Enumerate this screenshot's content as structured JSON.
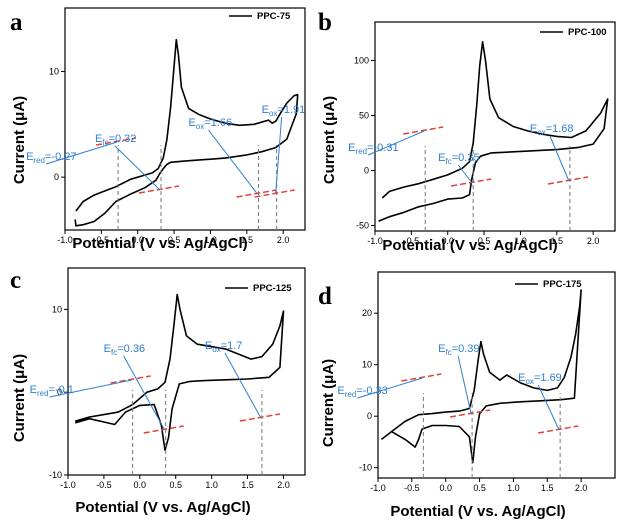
{
  "figure": {
    "panel_labels": [
      "a",
      "b",
      "c",
      "d"
    ],
    "xlabel": "Potential (V vs. Ag/AgCl)",
    "ylabel": "Current (μA)"
  },
  "chart_data": [
    {
      "panel": "a",
      "type": "line",
      "xlabel": "Potential (V vs. Ag/AgCl)",
      "ylabel": "Current (μA)",
      "xlim": [
        -1.0,
        2.3
      ],
      "ylim": [
        -5,
        16
      ],
      "xticks": [
        -1.0,
        -0.5,
        0.0,
        0.5,
        1.0,
        1.5,
        2.0
      ],
      "xtick_labels": [
        "-1.0",
        "-0.5",
        "0.0",
        "0.5",
        "1.0",
        "1.5",
        "2.0"
      ],
      "yticks": [
        0,
        10
      ],
      "ytick_labels": [
        "0",
        "10"
      ],
      "series": [
        {
          "name": "PPC-75",
          "color": "#000000",
          "x": [
            -0.85,
            -0.75,
            -0.6,
            -0.45,
            -0.3,
            -0.1,
            0.1,
            0.2,
            0.28,
            0.35,
            0.4,
            0.45,
            0.5,
            0.53,
            0.56,
            0.6,
            0.7,
            0.85,
            1.0,
            1.2,
            1.4,
            1.6,
            1.7,
            1.8,
            1.85,
            1.9,
            1.95,
            2.05,
            2.15,
            2.2,
            2.18,
            2.05,
            1.9,
            1.7,
            1.5,
            1.2,
            1.0,
            0.8,
            0.6,
            0.45,
            0.4,
            0.35,
            0.3,
            0.25,
            0.1,
            -0.1,
            -0.3,
            -0.45,
            -0.6,
            -0.75,
            -0.85,
            -0.86
          ],
          "y": [
            -3.2,
            -2.3,
            -1.7,
            -1.3,
            -0.9,
            -0.2,
            0.2,
            0.4,
            0.8,
            1.8,
            3.5,
            6.5,
            10.5,
            13,
            11.5,
            8.5,
            6.5,
            5.9,
            5.5,
            5.1,
            4.9,
            5.0,
            5.2,
            5.4,
            5.1,
            5.3,
            5.9,
            7.0,
            7.7,
            7.8,
            6.0,
            3.6,
            2.8,
            2.4,
            2.1,
            1.8,
            1.7,
            1.6,
            1.5,
            1.4,
            1.2,
            0.8,
            0.3,
            -0.3,
            -1.0,
            -1.6,
            -2.3,
            -3.4,
            -4.2,
            -4.5,
            -4.6,
            -4.0
          ]
        }
      ],
      "annotations": [
        {
          "label": "E",
          "sub": "red",
          "value": "=-0.27",
          "x": -0.27
        },
        {
          "label": "E",
          "sub": "fc",
          "value": "=0.32",
          "x": 0.32
        },
        {
          "label": "E",
          "sub": "ox",
          "value": "=1.66",
          "x": 1.66
        },
        {
          "label": "E",
          "sub": "ox",
          "value": "=1.91",
          "x": 1.91
        }
      ]
    },
    {
      "panel": "b",
      "type": "line",
      "xlabel": "Potential (V vs. Ag/AgCl)",
      "ylabel": "Current (μA)",
      "xlim": [
        -1.0,
        2.3
      ],
      "ylim": [
        -55,
        135
      ],
      "xticks": [
        -1.0,
        -0.5,
        0.0,
        0.5,
        1.0,
        1.5,
        2.0
      ],
      "xtick_labels": [
        "-1.0",
        "-0.5",
        "0.0",
        "0.5",
        "1.0",
        "1.5",
        "2.0"
      ],
      "yticks": [
        -50,
        0,
        50,
        100
      ],
      "ytick_labels": [
        "-50",
        "0",
        "50",
        "100"
      ],
      "series": [
        {
          "name": "PPC-100",
          "color": "#000000",
          "x": [
            -0.9,
            -0.8,
            -0.6,
            -0.4,
            -0.2,
            0.0,
            0.2,
            0.3,
            0.35,
            0.4,
            0.44,
            0.48,
            0.52,
            0.58,
            0.7,
            0.9,
            1.1,
            1.3,
            1.5,
            1.7,
            1.9,
            2.1,
            2.2,
            2.15,
            2.0,
            1.8,
            1.5,
            1.2,
            0.9,
            0.6,
            0.45,
            0.38,
            0.33,
            0.3,
            0.2,
            0.0,
            -0.2,
            -0.4,
            -0.6,
            -0.8,
            -0.95
          ],
          "y": [
            -25,
            -19,
            -15,
            -12,
            -8,
            -4,
            2,
            8,
            25,
            60,
            95,
            117,
            100,
            65,
            48,
            40,
            36,
            33,
            31,
            30,
            36,
            52,
            65,
            38,
            24,
            21,
            19,
            18,
            17,
            16,
            13,
            7,
            -8,
            -22,
            -25,
            -26,
            -30,
            -33,
            -38,
            -42,
            -46
          ]
        }
      ],
      "annotations": [
        {
          "label": "E",
          "sub": "red",
          "value": "=-0.31",
          "x": -0.31
        },
        {
          "label": "E",
          "sub": "fc",
          "value": "=0.35",
          "x": 0.35
        },
        {
          "label": "E",
          "sub": "ox",
          "value": "=1.68",
          "x": 1.68
        }
      ]
    },
    {
      "panel": "c",
      "type": "line",
      "xlabel": "Potential (V vs. Ag/AgCl)",
      "ylabel": "Current (μA)",
      "xlim": [
        -1.0,
        2.3
      ],
      "ylim": [
        -10,
        15
      ],
      "xticks": [
        -1.0,
        -0.5,
        0.0,
        0.5,
        1.0,
        1.5,
        2.0
      ],
      "xtick_labels": [
        "-1.0",
        "-0.5",
        "0.0",
        "0.5",
        "1.0",
        "1.5",
        "2.0"
      ],
      "yticks": [
        -10,
        0,
        10
      ],
      "ytick_labels": [
        "-10",
        "0",
        "10"
      ],
      "series": [
        {
          "name": "PPC-125",
          "color": "#000000",
          "x": [
            -0.9,
            -0.7,
            -0.5,
            -0.3,
            -0.1,
            0.1,
            0.25,
            0.35,
            0.42,
            0.48,
            0.52,
            0.56,
            0.65,
            0.8,
            1.0,
            1.2,
            1.4,
            1.55,
            1.7,
            1.85,
            1.95,
            2.0,
            1.95,
            1.8,
            1.5,
            1.2,
            0.9,
            0.7,
            0.55,
            0.45,
            0.4,
            0.35,
            0.3,
            0.2,
            0.0,
            -0.2,
            -0.35,
            -0.5,
            -0.7,
            -0.9
          ],
          "y": [
            -3.5,
            -3.0,
            -2.7,
            -2.4,
            -1.5,
            0.0,
            0.4,
            1.2,
            4.0,
            8.5,
            11.8,
            10.0,
            6.8,
            5.8,
            5.5,
            5.2,
            4.5,
            4.0,
            4.3,
            5.8,
            8.0,
            9.8,
            3.0,
            1.8,
            1.6,
            1.5,
            1.4,
            1.3,
            1.0,
            -2.0,
            -5.5,
            -7.0,
            -4.0,
            -1.5,
            -1.6,
            -2.4,
            -3.9,
            -3.6,
            -3.2,
            -3.7
          ]
        }
      ],
      "annotations": [
        {
          "label": "E",
          "sub": "red",
          "value": "=-0.1",
          "x": -0.1
        },
        {
          "label": "E",
          "sub": "fc",
          "value": "=0.36",
          "x": 0.36
        },
        {
          "label": "E",
          "sub": "ox",
          "value": "=1.7",
          "x": 1.7
        }
      ]
    },
    {
      "panel": "d",
      "type": "line",
      "xlabel": "Potential (V vs. Ag/AgCl)",
      "ylabel": "Current (μA)",
      "xlim": [
        -1.0,
        2.5
      ],
      "ylim": [
        -12,
        28
      ],
      "xticks": [
        -1.0,
        -0.5,
        0.0,
        0.5,
        1.0,
        1.5,
        2.0
      ],
      "xtick_labels": [
        "-1.0",
        "-0.5",
        "0.0",
        "0.5",
        "1.0",
        "1.5",
        "2.0"
      ],
      "yticks": [
        -10,
        0,
        10,
        20
      ],
      "ytick_labels": [
        "-10",
        "0",
        "10",
        "20"
      ],
      "series": [
        {
          "name": "PPC-175",
          "color": "#000000",
          "x": [
            -0.95,
            -0.8,
            -0.6,
            -0.4,
            -0.2,
            0.0,
            0.2,
            0.35,
            0.42,
            0.48,
            0.52,
            0.56,
            0.65,
            0.8,
            0.9,
            1.1,
            1.3,
            1.5,
            1.65,
            1.75,
            1.85,
            1.92,
            1.98,
            2.0,
            1.9,
            1.7,
            1.4,
            1.1,
            0.8,
            0.6,
            0.5,
            0.44,
            0.4,
            0.35,
            0.2,
            0.0,
            -0.2,
            -0.35,
            -0.4,
            -0.45,
            -0.6,
            -0.8,
            -0.95
          ],
          "y": [
            -4.5,
            -3.0,
            -1.0,
            0.3,
            0.5,
            0.8,
            1.0,
            1.5,
            5.0,
            11.0,
            14.5,
            12.0,
            8.5,
            7.0,
            8.0,
            6.5,
            5.5,
            5.0,
            5.5,
            7.5,
            11.5,
            16.0,
            21.5,
            24.5,
            3.5,
            3.2,
            3.0,
            2.8,
            2.5,
            2.0,
            0.5,
            -4.0,
            -9.0,
            -4.0,
            -2.0,
            -1.8,
            -1.8,
            -2.5,
            -4.5,
            -6.0,
            -4.5,
            -3.0,
            -4.5
          ]
        }
      ],
      "annotations": [
        {
          "label": "E",
          "sub": "red",
          "value": "=-0.33",
          "x": -0.33
        },
        {
          "label": "E",
          "sub": "fc",
          "value": "=0.39",
          "x": 0.39
        },
        {
          "label": "E",
          "sub": "ox",
          "value": "=1.69",
          "x": 1.69
        }
      ]
    }
  ]
}
